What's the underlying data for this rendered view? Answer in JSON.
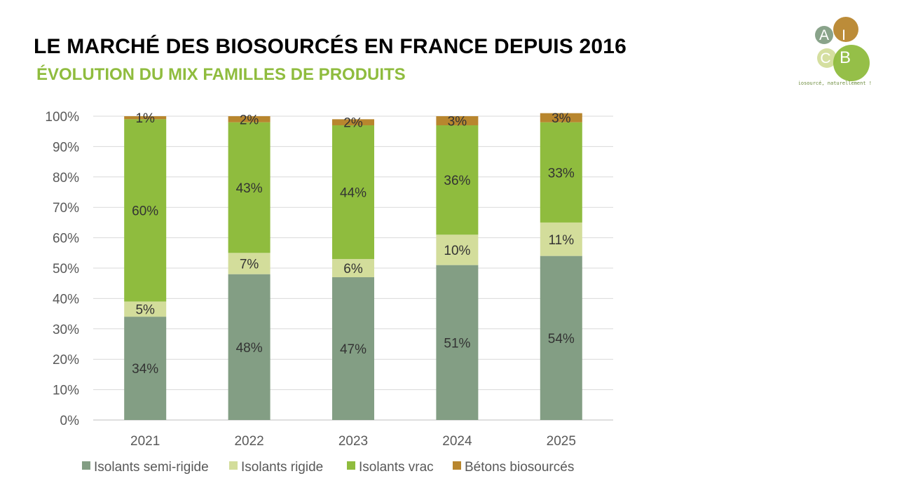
{
  "header": {
    "title": "LE MARCHÉ DES BIOSOURCÉS EN FRANCE DEPUIS 2016",
    "subtitle": "ÉVOLUTION DU MIX FAMILLES DE PRODUITS"
  },
  "logo": {
    "letters": [
      "A",
      "I",
      "C",
      "B"
    ],
    "tagline": "Biosourcé, naturellement !"
  },
  "colors": {
    "title": "#000000",
    "subtitle": "#8fbc3e",
    "semi_rigide": "#839e84",
    "rigide": "#d3dd9b",
    "vrac": "#8fbc3e",
    "betons": "#b8862e",
    "grid": "#d9d9d9",
    "label_text": "#333333",
    "axis_text": "#595959"
  },
  "chart_data": {
    "type": "bar",
    "stacked": true,
    "categories": [
      "2021",
      "2022",
      "2023",
      "2024",
      "2025"
    ],
    "series": [
      {
        "name": "Isolants semi-rigide",
        "values": [
          34,
          48,
          47,
          51,
          54
        ],
        "labels": [
          "34%",
          "48%",
          "47%",
          "51%",
          "54%"
        ],
        "color": "#839e84"
      },
      {
        "name": "Isolants rigide",
        "values": [
          5,
          7,
          6,
          10,
          11
        ],
        "labels": [
          "5%",
          "7%",
          "6%",
          "10%",
          "11%"
        ],
        "color": "#d3dd9b"
      },
      {
        "name": "Isolants vrac",
        "values": [
          60,
          43,
          44,
          36,
          33
        ],
        "labels": [
          "60%",
          "43%",
          "44%",
          "36%",
          "33%"
        ],
        "color": "#8fbc3e"
      },
      {
        "name": "Bétons biosourcés",
        "values": [
          1,
          2,
          2,
          3,
          3
        ],
        "labels": [
          "1%",
          "2%",
          "2%",
          "3%",
          "3%"
        ],
        "color": "#b8862e"
      }
    ],
    "ylim": [
      0,
      100
    ],
    "yticks": [
      "0%",
      "10%",
      "20%",
      "30%",
      "40%",
      "50%",
      "60%",
      "70%",
      "80%",
      "90%",
      "100%"
    ],
    "grid": true,
    "legend_position": "bottom"
  }
}
